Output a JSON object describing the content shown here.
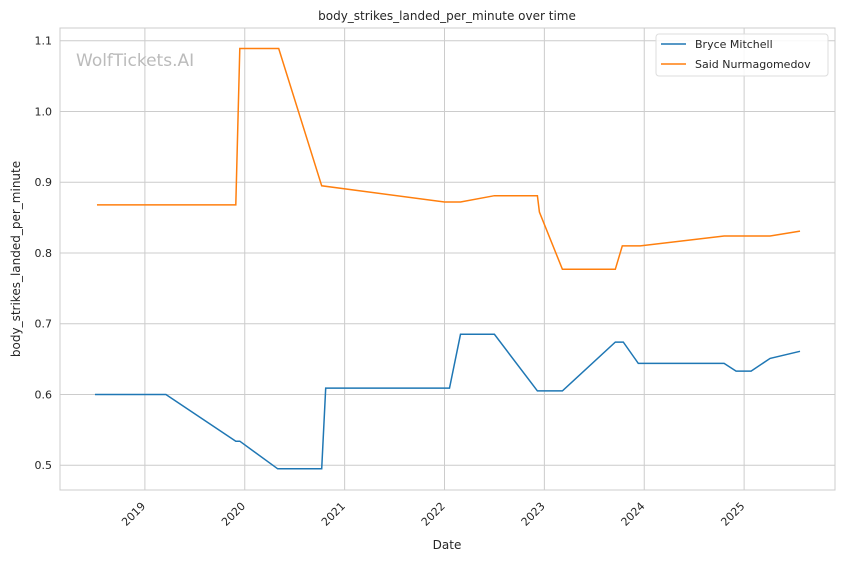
{
  "chart_data": {
    "type": "line",
    "title": "body_strikes_landed_per_minute over time",
    "xlabel": "Date",
    "ylabel": "body_strikes_landed_per_minute",
    "watermark": "WolfTickets.AI",
    "xlim": [
      2018.15,
      2025.91
    ],
    "ylim": [
      0.465,
      1.118
    ],
    "grid": true,
    "legend_position": "top-right",
    "x_ticks": [
      {
        "value": 2019,
        "label": "2019"
      },
      {
        "value": 2020,
        "label": "2020"
      },
      {
        "value": 2021,
        "label": "2021"
      },
      {
        "value": 2022,
        "label": "2022"
      },
      {
        "value": 2023,
        "label": "2023"
      },
      {
        "value": 2024,
        "label": "2024"
      },
      {
        "value": 2025,
        "label": "2025"
      }
    ],
    "y_ticks": [
      {
        "value": 0.5,
        "label": "0.5"
      },
      {
        "value": 0.6,
        "label": "0.6"
      },
      {
        "value": 0.7,
        "label": "0.7"
      },
      {
        "value": 0.8,
        "label": "0.8"
      },
      {
        "value": 0.9,
        "label": "0.9"
      },
      {
        "value": 1.0,
        "label": "1.0"
      },
      {
        "value": 1.1,
        "label": "1.1"
      }
    ],
    "series": [
      {
        "name": "Bryce Mitchell",
        "color": "#1f77b4",
        "x": [
          2018.5,
          2019.21,
          2019.91,
          2019.95,
          2020.33,
          2020.77,
          2020.81,
          2022.05,
          2022.16,
          2022.5,
          2022.93,
          2023.18,
          2023.71,
          2023.79,
          2023.94,
          2024.8,
          2024.92,
          2025.07,
          2025.26,
          2025.56
        ],
        "y": [
          0.6,
          0.6,
          0.534,
          0.534,
          0.495,
          0.495,
          0.609,
          0.609,
          0.685,
          0.685,
          0.605,
          0.605,
          0.674,
          0.674,
          0.644,
          0.644,
          0.633,
          0.633,
          0.651,
          0.661
        ]
      },
      {
        "name": "Said Nurmagomedov",
        "color": "#ff7f0e",
        "x": [
          2018.52,
          2019.91,
          2019.95,
          2020.34,
          2020.77,
          2022.0,
          2022.16,
          2022.5,
          2022.93,
          2022.95,
          2023.18,
          2023.71,
          2023.78,
          2023.96,
          2024.8,
          2025.26,
          2025.56
        ],
        "y": [
          0.868,
          0.868,
          1.089,
          1.089,
          0.895,
          0.872,
          0.872,
          0.881,
          0.881,
          0.858,
          0.777,
          0.777,
          0.81,
          0.81,
          0.824,
          0.824,
          0.831
        ]
      }
    ]
  }
}
